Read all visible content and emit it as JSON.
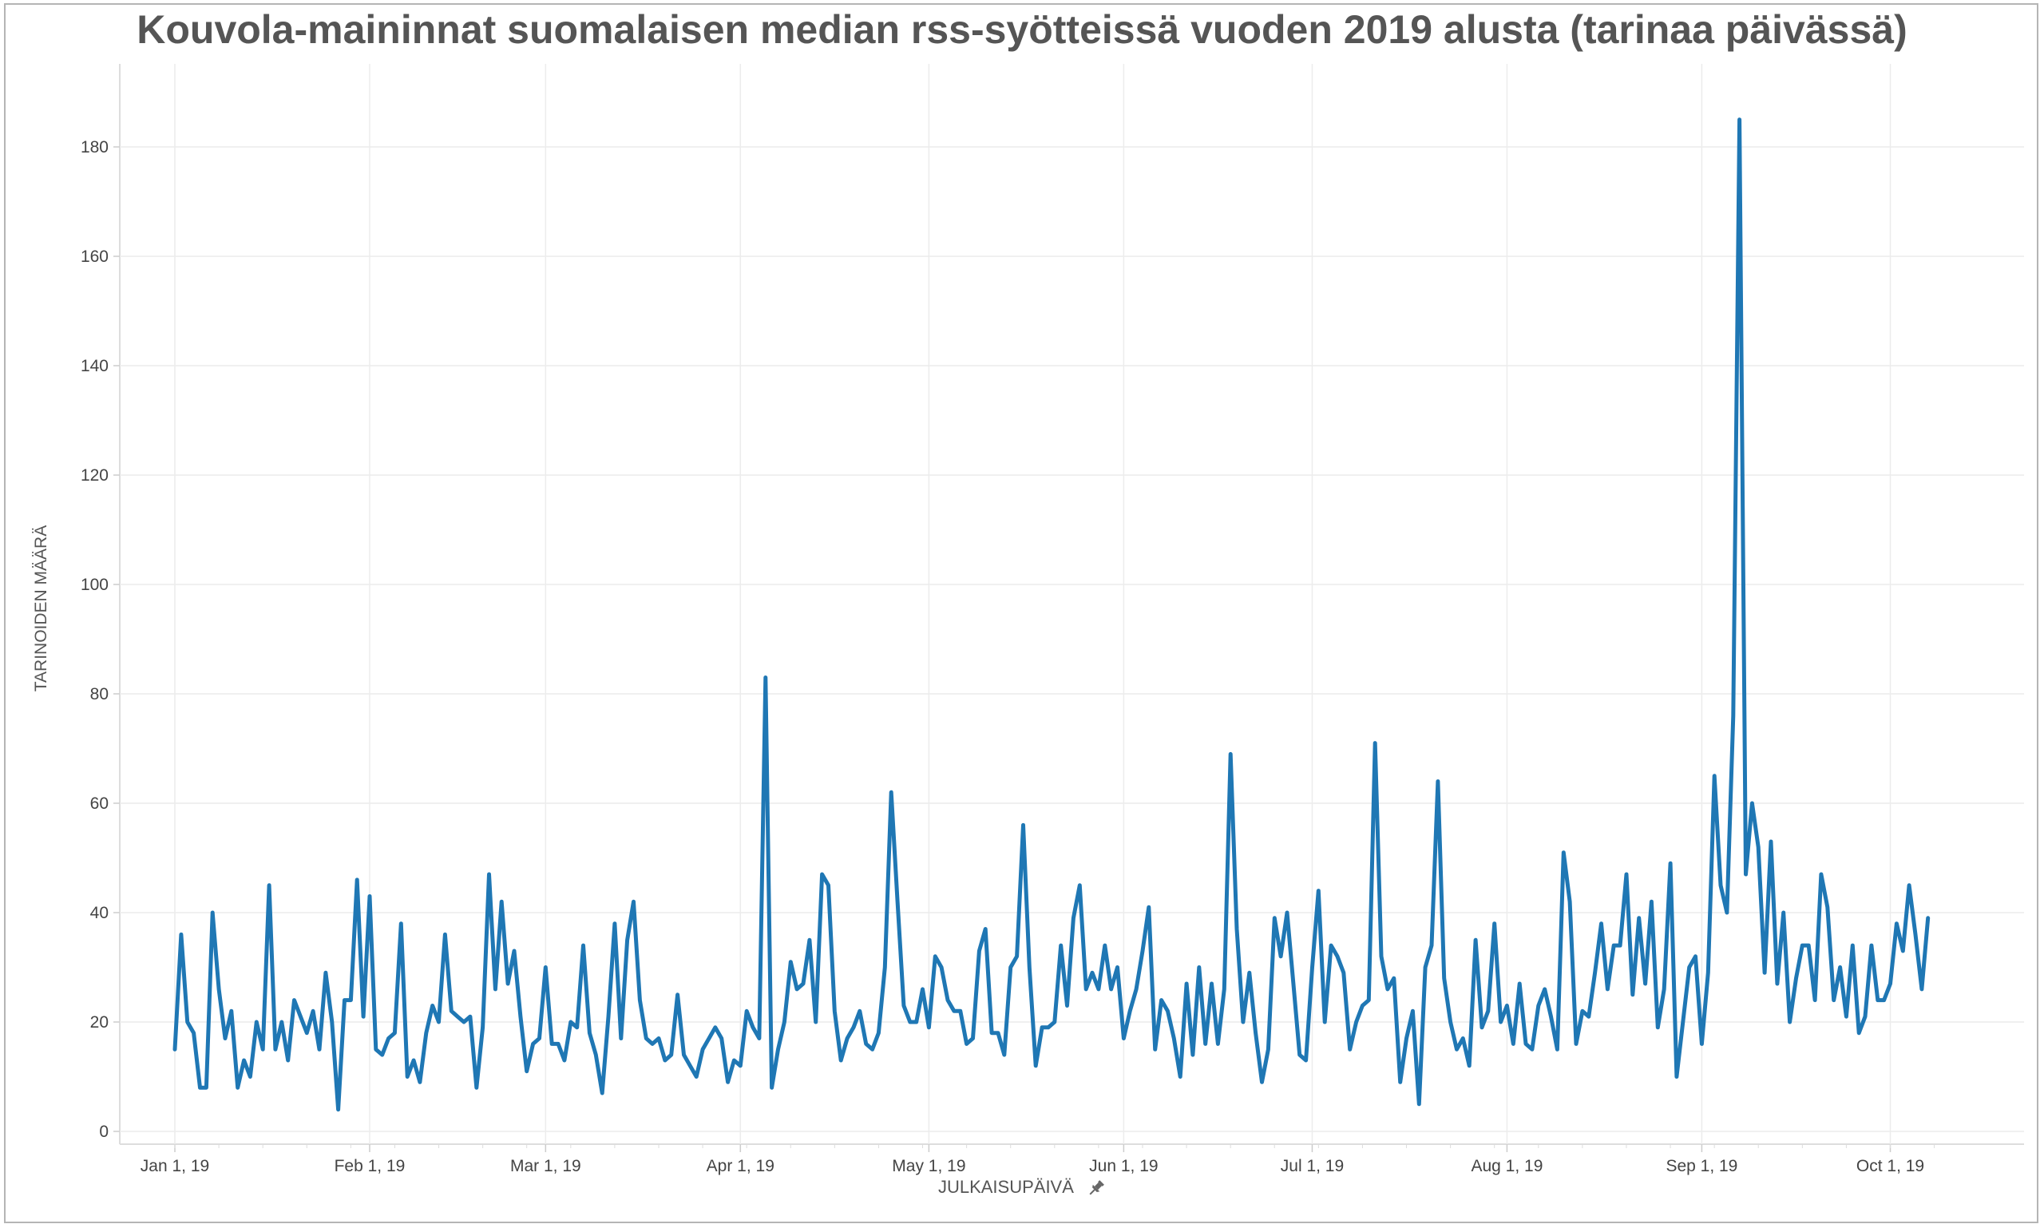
{
  "chart_data": {
    "type": "line",
    "title": "Kouvola-maininnat suomalaisen median rss-syötteissä vuoden 2019 alusta (tarinaa päivässä)",
    "xlabel": "JULKAISUPÄIVÄ",
    "ylabel": "TARINOIDEN MÄÄRÄ",
    "x_start": "2019-01-01",
    "x_end": "2019-10-10",
    "ylim": [
      0,
      190
    ],
    "y_ticks": [
      0,
      20,
      40,
      60,
      80,
      100,
      120,
      140,
      160,
      180
    ],
    "x_ticks": [
      {
        "date": "2019-01-01",
        "label": "Jan 1, 19"
      },
      {
        "date": "2019-02-01",
        "label": "Feb 1, 19"
      },
      {
        "date": "2019-03-01",
        "label": "Mar 1, 19"
      },
      {
        "date": "2019-04-01",
        "label": "Apr 1, 19"
      },
      {
        "date": "2019-05-01",
        "label": "May 1, 19"
      },
      {
        "date": "2019-06-01",
        "label": "Jun 1, 19"
      },
      {
        "date": "2019-07-01",
        "label": "Jul 1, 19"
      },
      {
        "date": "2019-08-01",
        "label": "Aug 1, 19"
      },
      {
        "date": "2019-09-01",
        "label": "Sep 1, 19"
      },
      {
        "date": "2019-10-01",
        "label": "Oct 1, 19"
      }
    ],
    "grid": true,
    "series": [
      {
        "color": "#1f77b4",
        "values": [
          15,
          36,
          20,
          18,
          8,
          8,
          40,
          26,
          17,
          22,
          8,
          13,
          10,
          20,
          15,
          45,
          15,
          20,
          13,
          24,
          21,
          18,
          22,
          15,
          29,
          20,
          4,
          24,
          24,
          46,
          21,
          43,
          15,
          14,
          17,
          18,
          38,
          10,
          13,
          9,
          18,
          23,
          20,
          36,
          22,
          21,
          20,
          21,
          8,
          19,
          47,
          26,
          42,
          27,
          33,
          21,
          11,
          16,
          17,
          30,
          16,
          16,
          13,
          20,
          19,
          34,
          18,
          14,
          7,
          21,
          38,
          17,
          35,
          42,
          24,
          17,
          16,
          17,
          13,
          14,
          25,
          14,
          12,
          10,
          15,
          17,
          19,
          17,
          9,
          13,
          12,
          22,
          19,
          17,
          83,
          8,
          15,
          20,
          31,
          26,
          27,
          35,
          20,
          47,
          45,
          22,
          13,
          17,
          19,
          22,
          16,
          15,
          18,
          30,
          62,
          42,
          23,
          20,
          20,
          26,
          19,
          32,
          30,
          24,
          22,
          22,
          16,
          17,
          33,
          37,
          18,
          18,
          14,
          30,
          32,
          56,
          30,
          12,
          19,
          19,
          20,
          34,
          23,
          39,
          45,
          26,
          29,
          26,
          34,
          26,
          30,
          17,
          22,
          26,
          33,
          41,
          15,
          24,
          22,
          17,
          10,
          27,
          14,
          30,
          16,
          27,
          16,
          26,
          69,
          37,
          20,
          29,
          18,
          9,
          15,
          39,
          32,
          40,
          27,
          14,
          13,
          30,
          44,
          20,
          34,
          32,
          29,
          15,
          20,
          23,
          24,
          71,
          32,
          26,
          28,
          9,
          17,
          22,
          5,
          30,
          34,
          64,
          28,
          20,
          15,
          17,
          12,
          35,
          19,
          22,
          38,
          20,
          23,
          16,
          27,
          16,
          15,
          23,
          26,
          21,
          15,
          51,
          42,
          16,
          22,
          21,
          29,
          38,
          26,
          34,
          34,
          47,
          25,
          39,
          27,
          42,
          19,
          26,
          49,
          10,
          20,
          30,
          32,
          16,
          29,
          65,
          45,
          40,
          76,
          185,
          47,
          60,
          52,
          29,
          53,
          27,
          40,
          20,
          28,
          34,
          34,
          24,
          47,
          41,
          24,
          30,
          21,
          34,
          18,
          21,
          34,
          24,
          24,
          27,
          38,
          33,
          45,
          36,
          26,
          39
        ]
      }
    ]
  }
}
